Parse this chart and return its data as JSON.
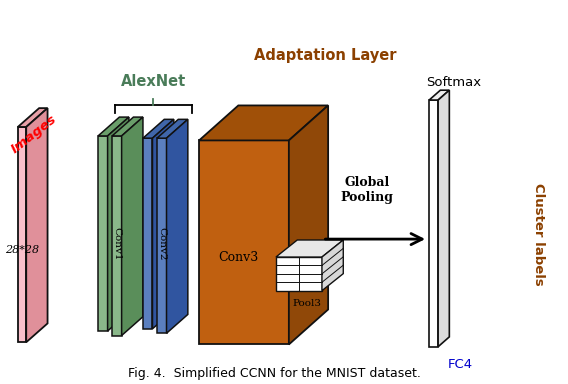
{
  "title": "Fig. 4.  Simplified CCNN for the MNIST dataset.",
  "alexnet_label": "AlexNet",
  "adaptation_label": "Adaptation Layer",
  "images_label": "Images",
  "dim_label": "28*28",
  "softmax_label": "Softmax",
  "fc4_label": "FC4",
  "cluster_label": "Cluster labels",
  "conv1_label": "Conv1",
  "conv2_label": "Conv2",
  "conv3_label": "Conv3",
  "pool3_label": "Pool3",
  "global_pooling_label": "Global\nPooling",
  "colors": {
    "input_face": "#F9C0CB",
    "input_top": "#E8A0A8",
    "input_side": "#E0909A",
    "conv1_face": "#8AB88A",
    "conv1_top": "#6A9E6A",
    "conv1_side": "#5A8E5A",
    "conv2_face": "#5B7FBF",
    "conv2_top": "#4066AA",
    "conv2_side": "#3055A0",
    "conv3_face": "#C06010",
    "conv3_top": "#A05008",
    "conv3_side": "#904808",
    "pool3_face": "#FFFFFF",
    "pool3_top": "#E8E8E8",
    "pool3_side": "#D8D8D8",
    "fc4_face": "#FFFFFF",
    "fc4_top": "#EEEEEE",
    "fc4_side": "#DDDDDD",
    "alexnet_color": "#4a7c59",
    "adaptation_color": "#8B4000",
    "images_color": "#FF0000",
    "softmax_color": "#000000",
    "fc4_text_color": "#0000CC",
    "cluster_color": "#8B4000",
    "title_color": "#000000",
    "global_pooling_color": "#000000",
    "edge_color": "#111111"
  }
}
